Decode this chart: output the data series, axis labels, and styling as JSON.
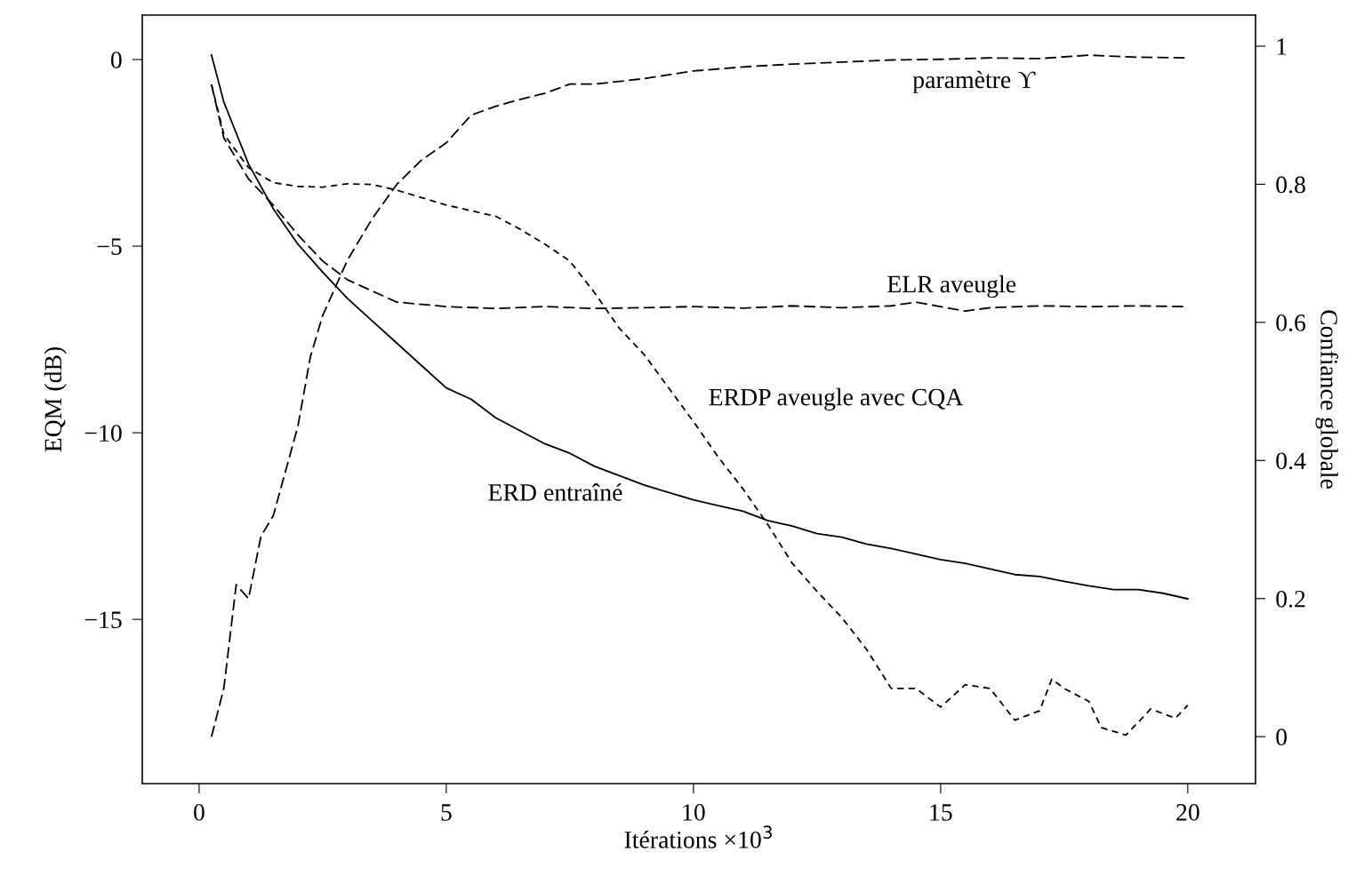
{
  "chart_data": {
    "type": "line",
    "xlabel": "Itérations ×10$^{3}$",
    "ylabel": "EQM (dB)",
    "y2label": "Confiance globale",
    "xlim": [
      -1.15,
      21.37
    ],
    "xticks": [
      0,
      5,
      10,
      15,
      20
    ],
    "ylim": [
      -19.4,
      1.19
    ],
    "yticks": [
      {
        "value": -15,
        "label": "−15"
      },
      {
        "value": -10,
        "label": "−10"
      },
      {
        "value": -5,
        "label": "−5"
      },
      0
    ],
    "y2lim": [
      -0.068,
      1.045
    ],
    "y2ticks": [
      0,
      0.2,
      0.4,
      0.6,
      0.8,
      1
    ],
    "grid": false,
    "marker": "none",
    "series": [
      {
        "color": "#000000",
        "line_style": "solid",
        "x": [
          0.25,
          0.5,
          1,
          1.5,
          2,
          2.5,
          3,
          3.5,
          4,
          4.5,
          5,
          5.5,
          6,
          6.5,
          7,
          7.5,
          8,
          8.5,
          9,
          9.5,
          10,
          10.5,
          11,
          11.5,
          12,
          12.5,
          13,
          13.5,
          14,
          14.5,
          15,
          15.5,
          16,
          16.5,
          17,
          17.5,
          18,
          18.5,
          19,
          19.5,
          20
        ],
        "values": [
          0.12,
          -1.14,
          -2.8,
          -4.0,
          -4.95,
          -5.7,
          -6.4,
          -7.0,
          -7.6,
          -8.2,
          -8.8,
          -9.1,
          -9.6,
          -9.95,
          -10.3,
          -10.55,
          -10.9,
          -11.15,
          -11.4,
          -11.6,
          -11.8,
          -11.95,
          -12.1,
          -12.35,
          -12.5,
          -12.7,
          -12.8,
          -12.98,
          -13.1,
          -13.25,
          -13.4,
          -13.5,
          -13.65,
          -13.8,
          -13.85,
          -13.98,
          -14.1,
          -14.2,
          -14.2,
          -14.3,
          -14.45
        ]
      },
      {
        "color": "#000000",
        "line_style": "dashed",
        "x": [
          0.25,
          0.5,
          1,
          1.5,
          2,
          2.5,
          3,
          3.5,
          4,
          5,
          6,
          7,
          8,
          9,
          10,
          11,
          12,
          13,
          14,
          14.5,
          15,
          15.5,
          16,
          17,
          18,
          19,
          20
        ],
        "values": [
          -0.67,
          -2.1,
          -3.2,
          -3.9,
          -4.7,
          -5.4,
          -5.9,
          -6.2,
          -6.5,
          -6.62,
          -6.67,
          -6.62,
          -6.67,
          -6.65,
          -6.62,
          -6.66,
          -6.6,
          -6.65,
          -6.6,
          -6.5,
          -6.62,
          -6.74,
          -6.65,
          -6.6,
          -6.62,
          -6.6,
          -6.62
        ]
      },
      {
        "color": "#000000",
        "line_style": "dotted",
        "x": [
          0.25,
          0.5,
          1,
          1.5,
          2,
          2.5,
          3,
          3.5,
          4,
          4.5,
          5,
          5.5,
          6,
          6.5,
          7,
          7.5,
          8,
          8.5,
          9,
          9.5,
          10,
          10.5,
          11,
          11.5,
          12,
          12.5,
          13,
          13.5,
          14,
          14.5,
          15,
          15.5,
          16,
          16.5,
          17,
          17.25,
          17.5,
          18,
          18.25,
          18.75,
          19.25,
          19.75,
          20
        ],
        "values": [
          -0.67,
          -2.0,
          -2.9,
          -3.3,
          -3.4,
          -3.42,
          -3.33,
          -3.35,
          -3.5,
          -3.7,
          -3.9,
          -4.05,
          -4.2,
          -4.55,
          -4.95,
          -5.4,
          -6.25,
          -7.2,
          -7.9,
          -8.8,
          -9.7,
          -10.65,
          -11.5,
          -12.45,
          -13.5,
          -14.25,
          -14.95,
          -15.8,
          -16.85,
          -16.85,
          -17.35,
          -16.75,
          -16.85,
          -17.7,
          -17.45,
          -16.6,
          -16.85,
          -17.2,
          -17.9,
          -18.1,
          -17.4,
          -17.65,
          -17.3
        ]
      },
      {
        "color": "#000000",
        "line_style": "dashed",
        "axis": "y2",
        "x": [
          0.25,
          0.5,
          0.75,
          1,
          1.25,
          1.5,
          2,
          2.25,
          2.5,
          3,
          3.5,
          4,
          4.5,
          5,
          5.5,
          6,
          6.5,
          7,
          7.5,
          8,
          9,
          10,
          11,
          12,
          13,
          14,
          15,
          16,
          17,
          18,
          19,
          20
        ],
        "values": [
          0,
          0.07,
          0.22,
          0.2,
          0.29,
          0.32,
          0.45,
          0.55,
          0.61,
          0.69,
          0.75,
          0.8,
          0.835,
          0.86,
          0.9,
          0.913,
          0.923,
          0.932,
          0.945,
          0.945,
          0.953,
          0.964,
          0.97,
          0.974,
          0.977,
          0.98,
          0.981,
          0.983,
          0.982,
          0.987,
          0.984,
          0.983
        ]
      }
    ],
    "annotations": [
      "paramètre ϒ",
      "ELR aveugle",
      "ERDP aveugle avec CQA",
      "ERD entraîné"
    ]
  }
}
